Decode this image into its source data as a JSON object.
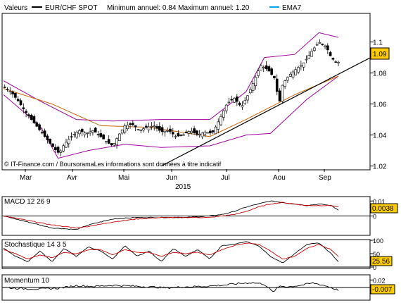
{
  "header": {
    "valeurs": "Valeurs",
    "symbol": "EUR/CHF SPOT",
    "minmax": "Minimum annuel: 0.84 Maximum annuel: 1.20",
    "ema": "EMA7"
  },
  "credit": "© IT-Finance.com / BoursoramaLes informations sont données à titre indicatif",
  "colors": {
    "up": "#ffffff",
    "down": "#000000",
    "bollinger": "#a000a0",
    "ema": "#cc6600",
    "signal": "#cc0000",
    "trend": "#000000",
    "price_box": "#ffcc00"
  },
  "chart_data": [
    {
      "type": "candlestick",
      "title": "EUR/CHF SPOT",
      "x_labels": [
        "Mar",
        "Avr",
        "Mai",
        "Jun",
        "Jul",
        "Aou",
        "Sep"
      ],
      "x_year": "2015",
      "y_ticks": [
        "1.1",
        "1.08",
        "1.06",
        "1.04",
        "1.02"
      ],
      "ylim": [
        1.018,
        1.118
      ],
      "last_value": "1.09",
      "close_path": [
        [
          0,
          1.071
        ],
        [
          6,
          1.068
        ],
        [
          12,
          1.062
        ],
        [
          18,
          1.055
        ],
        [
          24,
          1.049
        ],
        [
          30,
          1.043
        ],
        [
          36,
          1.037
        ],
        [
          42,
          1.031
        ],
        [
          46,
          1.028
        ],
        [
          50,
          1.034
        ],
        [
          56,
          1.039
        ],
        [
          62,
          1.043
        ],
        [
          68,
          1.041
        ],
        [
          74,
          1.043
        ],
        [
          80,
          1.039
        ],
        [
          86,
          1.035
        ],
        [
          90,
          1.033
        ],
        [
          95,
          1.04
        ],
        [
          100,
          1.046
        ],
        [
          106,
          1.047
        ],
        [
          112,
          1.043
        ],
        [
          118,
          1.045
        ],
        [
          124,
          1.046
        ],
        [
          130,
          1.042
        ],
        [
          136,
          1.043
        ],
        [
          142,
          1.039
        ],
        [
          148,
          1.04
        ],
        [
          154,
          1.043
        ],
        [
          160,
          1.04
        ],
        [
          166,
          1.042
        ],
        [
          172,
          1.041
        ],
        [
          178,
          1.05
        ],
        [
          184,
          1.06
        ],
        [
          190,
          1.064
        ],
        [
          196,
          1.058
        ],
        [
          201,
          1.065
        ],
        [
          206,
          1.074
        ],
        [
          212,
          1.085
        ],
        [
          218,
          1.082
        ],
        [
          224,
          1.076
        ],
        [
          227,
          1.059
        ],
        [
          230,
          1.073
        ],
        [
          236,
          1.079
        ],
        [
          242,
          1.083
        ],
        [
          248,
          1.087
        ],
        [
          254,
          1.094
        ],
        [
          260,
          1.1
        ],
        [
          266,
          1.097
        ],
        [
          270,
          1.09
        ],
        [
          274,
          1.087
        ]
      ],
      "ema7": [
        [
          0,
          1.07
        ],
        [
          40,
          1.06
        ],
        [
          80,
          1.046
        ],
        [
          120,
          1.045
        ],
        [
          170,
          1.039
        ],
        [
          200,
          1.05
        ],
        [
          240,
          1.066
        ],
        [
          276,
          1.078
        ]
      ],
      "boll_upper": [
        [
          0,
          1.075
        ],
        [
          30,
          1.062
        ],
        [
          60,
          1.05
        ],
        [
          90,
          1.049
        ],
        [
          130,
          1.05
        ],
        [
          170,
          1.05
        ],
        [
          200,
          1.068
        ],
        [
          215,
          1.09
        ],
        [
          240,
          1.092
        ],
        [
          260,
          1.106
        ],
        [
          276,
          1.103
        ]
      ],
      "boll_lower": [
        [
          0,
          1.066
        ],
        [
          30,
          1.046
        ],
        [
          45,
          1.025
        ],
        [
          70,
          1.03
        ],
        [
          100,
          1.034
        ],
        [
          130,
          1.032
        ],
        [
          170,
          1.033
        ],
        [
          200,
          1.04
        ],
        [
          220,
          1.041
        ],
        [
          250,
          1.063
        ],
        [
          276,
          1.078
        ]
      ],
      "trendline": [
        [
          130,
          1.02
        ],
        [
          310,
          1.093
        ]
      ]
    },
    {
      "type": "line",
      "title": "MACD 12 26 9",
      "y_ticks": [
        "0.01",
        "0"
      ],
      "ylim": [
        -0.012,
        0.012
      ],
      "last_value": "0.0038",
      "x": [
        0,
        20,
        40,
        60,
        70,
        90,
        110,
        130,
        150,
        170,
        180,
        190,
        200,
        210,
        220,
        230,
        240,
        250,
        260,
        270,
        276
      ],
      "series": [
        {
          "role": "macd",
          "values": [
            0.0,
            -0.004,
            -0.008,
            -0.009,
            -0.006,
            -0.002,
            -0.001,
            -0.001,
            -0.001,
            0.0,
            0.001,
            0.003,
            0.006,
            0.008,
            0.01,
            0.009,
            0.008,
            0.007,
            0.008,
            0.007,
            0.004
          ]
        },
        {
          "role": "signal",
          "values": [
            0.0,
            -0.003,
            -0.006,
            -0.008,
            -0.007,
            -0.004,
            -0.002,
            -0.001,
            -0.001,
            -0.001,
            0.0,
            0.001,
            0.003,
            0.006,
            0.008,
            0.009,
            0.008,
            0.007,
            0.007,
            0.007,
            0.006
          ]
        }
      ]
    },
    {
      "type": "line",
      "title": "Stochastique 14 3 5",
      "y_ticks": [
        "100",
        "50",
        "0"
      ],
      "ylim": [
        0,
        100
      ],
      "last_value": "25.56",
      "x": [
        0,
        10,
        20,
        30,
        40,
        50,
        60,
        70,
        80,
        90,
        100,
        110,
        120,
        130,
        140,
        150,
        160,
        170,
        180,
        190,
        200,
        210,
        220,
        230,
        240,
        250,
        260,
        270,
        276
      ],
      "series": [
        {
          "role": "k",
          "values": [
            70,
            40,
            20,
            60,
            20,
            70,
            40,
            75,
            60,
            30,
            80,
            40,
            60,
            20,
            70,
            40,
            65,
            30,
            80,
            85,
            95,
            80,
            40,
            15,
            50,
            85,
            90,
            50,
            20
          ]
        },
        {
          "role": "d",
          "values": [
            65,
            50,
            30,
            45,
            35,
            55,
            50,
            65,
            65,
            45,
            65,
            55,
            55,
            40,
            55,
            50,
            55,
            45,
            65,
            80,
            90,
            85,
            60,
            30,
            40,
            70,
            85,
            65,
            40
          ]
        }
      ]
    },
    {
      "type": "line",
      "title": "Momentum 10",
      "y_ticks": [
        "0.02",
        "0"
      ],
      "ylim": [
        -0.03,
        0.03
      ],
      "last_value": "-0.007",
      "x": [
        0,
        15,
        30,
        45,
        60,
        75,
        90,
        105,
        120,
        135,
        150,
        165,
        180,
        195,
        205,
        215,
        222,
        228,
        235,
        245,
        255,
        265,
        276
      ],
      "series": [
        {
          "role": "momentum",
          "values": [
            0.0,
            -0.003,
            -0.004,
            -0.002,
            0.005,
            0.003,
            0.006,
            0.004,
            0.002,
            -0.001,
            0.002,
            0.003,
            0.006,
            0.011,
            0.013,
            0.009,
            -0.012,
            0.004,
            0.002,
            0.006,
            0.012,
            0.005,
            -0.007
          ]
        }
      ]
    }
  ]
}
